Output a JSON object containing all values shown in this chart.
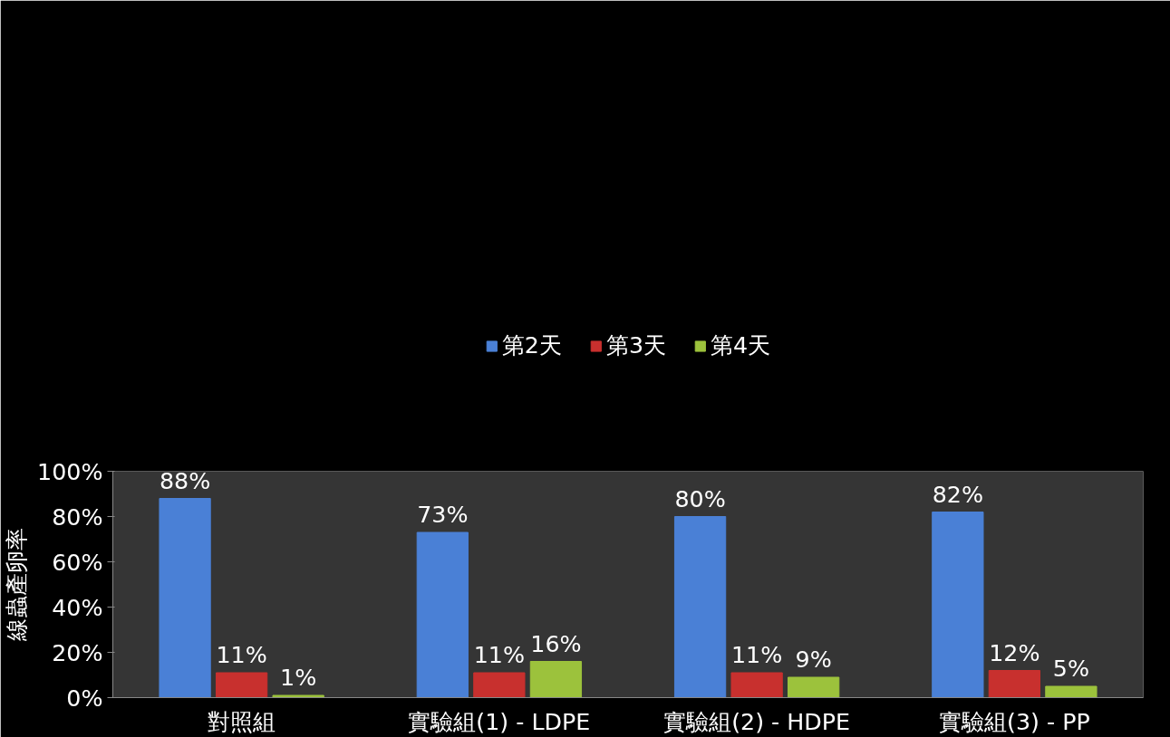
{
  "chart_data": {
    "type": "bar",
    "ylabel": "線蟲產卵率",
    "categories": [
      "對照組",
      "實驗組(1) - LDPE",
      "實驗組(2) - HDPE",
      "實驗組(3) - PP"
    ],
    "series": [
      {
        "name": "第2天",
        "color": "#4a80d6",
        "values": [
          88,
          73,
          80,
          82
        ],
        "value_labels": [
          "88%",
          "73%",
          "80%",
          "82%"
        ]
      },
      {
        "name": "第3天",
        "color": "#c8302e",
        "values": [
          11,
          11,
          11,
          12
        ],
        "value_labels": [
          "11%",
          "11%",
          "11%",
          "12%"
        ]
      },
      {
        "name": "第4天",
        "color": "#9cc23c",
        "values": [
          1,
          16,
          9,
          5
        ],
        "value_labels": [
          "1%",
          "16%",
          "9%",
          "5%"
        ]
      }
    ],
    "ylim": [
      0,
      100
    ],
    "yticks": [
      {
        "value": 0,
        "label": "0%"
      },
      {
        "value": 20,
        "label": "20%"
      },
      {
        "value": 40,
        "label": "40%"
      },
      {
        "value": 60,
        "label": "60%"
      },
      {
        "value": 80,
        "label": "80%"
      },
      {
        "value": 100,
        "label": "100%"
      }
    ],
    "grid": false,
    "legend": "top"
  }
}
